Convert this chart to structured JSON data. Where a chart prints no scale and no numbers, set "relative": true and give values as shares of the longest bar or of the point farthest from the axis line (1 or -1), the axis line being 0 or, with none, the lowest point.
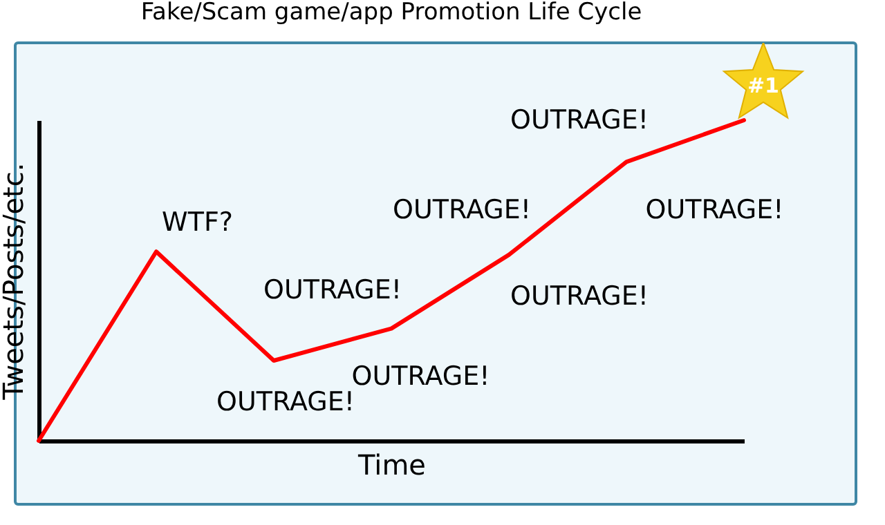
{
  "chart_data": {
    "type": "line",
    "title": "Fake/Scam game/app Promotion Life Cycle",
    "xlabel": "Time",
    "ylabel": "Tweets/Posts/etc.",
    "relative": true,
    "categories": [
      null,
      null,
      null,
      null,
      null,
      null,
      null
    ],
    "series": [
      {
        "color": "#ff0000",
        "values": [
          0,
          0.59,
          0.25,
          0.35,
          0.58,
          0.87,
          1
        ]
      }
    ],
    "grid": false,
    "marker": "none",
    "line_style": "solid",
    "annotations": [
      "WTF?",
      "OUTRAGE!",
      "OUTRAGE!",
      "OUTRAGE!",
      "OUTRAGE!",
      "OUTRAGE!",
      "OUTRAGE!",
      "OUTRAGE!",
      "#1"
    ]
  }
}
